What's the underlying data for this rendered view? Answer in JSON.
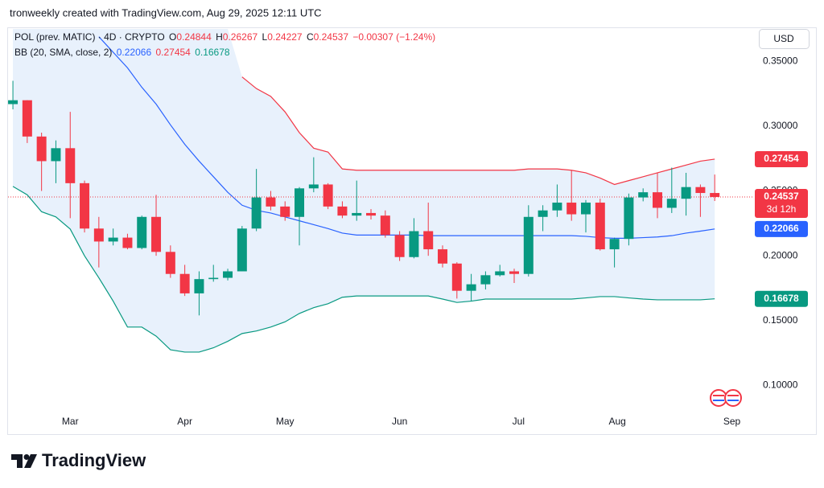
{
  "attribution": "tronweekly created with TradingView.com, Aug 29, 2025 12:11 UTC",
  "brand": "TradingView",
  "chart_data": {
    "type": "candlestick",
    "title": "POL (prev. MATIC) · 4D · CRYPTO",
    "ohlc_labels": [
      "O",
      "H",
      "L",
      "C"
    ],
    "change_label": "−0.00307 (−1.24%)",
    "indicator": "BB (20, SMA, close, 2)",
    "countdown": "3d 12h",
    "currency": "USD",
    "x": [
      0,
      1,
      2,
      3,
      4,
      5,
      6,
      7,
      8,
      9,
      10,
      11,
      12,
      13,
      14,
      15,
      16,
      17,
      18,
      19,
      20,
      21,
      22,
      23,
      24,
      25,
      26,
      27,
      28,
      29,
      30,
      31,
      32,
      33,
      34,
      35,
      36,
      37,
      38,
      39,
      40,
      41,
      42,
      43,
      44,
      45,
      46,
      47,
      48,
      49
    ],
    "open": [
      0.317,
      0.32,
      0.292,
      0.273,
      0.283,
      0.256,
      0.221,
      0.211,
      0.214,
      0.206,
      0.23,
      0.203,
      0.186,
      0.171,
      0.182,
      0.183,
      0.188,
      0.221,
      0.245,
      0.238,
      0.23,
      0.252,
      0.255,
      0.238,
      0.231,
      0.233,
      0.231,
      0.216,
      0.199,
      0.219,
      0.205,
      0.194,
      0.173,
      0.178,
      0.185,
      0.188,
      0.186,
      0.23,
      0.235,
      0.241,
      0.232,
      0.241,
      0.205,
      0.213,
      0.245,
      0.249,
      0.237,
      0.244,
      0.253,
      0.24844
    ],
    "high": [
      0.335,
      0.32,
      0.295,
      0.289,
      0.311,
      0.258,
      0.23,
      0.221,
      0.217,
      0.231,
      0.247,
      0.208,
      0.193,
      0.188,
      0.193,
      0.19,
      0.223,
      0.267,
      0.25,
      0.242,
      0.253,
      0.276,
      0.256,
      0.242,
      0.258,
      0.236,
      0.235,
      0.219,
      0.229,
      0.241,
      0.208,
      0.195,
      0.186,
      0.188,
      0.193,
      0.19,
      0.239,
      0.239,
      0.255,
      0.266,
      0.243,
      0.244,
      0.214,
      0.248,
      0.252,
      0.264,
      0.268,
      0.264,
      0.255,
      0.26267
    ],
    "low": [
      0.313,
      0.287,
      0.25,
      0.256,
      0.229,
      0.218,
      0.191,
      0.208,
      0.205,
      0.205,
      0.2,
      0.183,
      0.169,
      0.154,
      0.18,
      0.181,
      0.188,
      0.219,
      0.235,
      0.227,
      0.208,
      0.249,
      0.236,
      0.229,
      0.227,
      0.228,
      0.214,
      0.196,
      0.198,
      0.2,
      0.191,
      0.167,
      0.165,
      0.174,
      0.184,
      0.179,
      0.184,
      0.219,
      0.23,
      0.227,
      0.218,
      0.204,
      0.191,
      0.208,
      0.242,
      0.229,
      0.233,
      0.231,
      0.23,
      0.24227
    ],
    "close": [
      0.32,
      0.292,
      0.273,
      0.283,
      0.256,
      0.221,
      0.211,
      0.214,
      0.206,
      0.23,
      0.203,
      0.186,
      0.171,
      0.182,
      0.183,
      0.188,
      0.221,
      0.245,
      0.238,
      0.23,
      0.252,
      0.255,
      0.238,
      0.231,
      0.233,
      0.231,
      0.216,
      0.199,
      0.219,
      0.205,
      0.194,
      0.173,
      0.178,
      0.185,
      0.188,
      0.186,
      0.23,
      0.235,
      0.241,
      0.232,
      0.241,
      0.205,
      0.213,
      0.245,
      0.249,
      0.237,
      0.244,
      0.253,
      0.24844,
      0.24537
    ],
    "up_color": "#089981",
    "down_color": "#f23645",
    "band_fill": "#e8f1fc",
    "series": [
      {
        "color": "#2962ff",
        "values": [
          null,
          null,
          null,
          null,
          null,
          null,
          0.369,
          0.357,
          0.345,
          0.33,
          0.317,
          0.301,
          0.286,
          0.273,
          0.261,
          0.249,
          0.239,
          0.235,
          0.233,
          0.23,
          0.227,
          0.224,
          0.221,
          0.2175,
          0.216,
          0.216,
          0.216,
          0.216,
          0.216,
          0.2155,
          0.2155,
          0.2155,
          0.2155,
          0.2155,
          0.2155,
          0.2155,
          0.2155,
          0.2155,
          0.2155,
          0.2155,
          0.215,
          0.214,
          0.2135,
          0.2135,
          0.214,
          0.2145,
          0.2155,
          0.2175,
          0.219,
          0.22066
        ]
      },
      {
        "color": "#f23645",
        "values": [
          null,
          null,
          null,
          null,
          null,
          null,
          null,
          null,
          null,
          null,
          null,
          null,
          null,
          null,
          null,
          null,
          0.338,
          0.329,
          0.323,
          0.311,
          0.295,
          0.283,
          0.28,
          0.267,
          0.266,
          0.266,
          0.266,
          0.266,
          0.266,
          0.266,
          0.266,
          0.266,
          0.266,
          0.266,
          0.266,
          0.266,
          0.267,
          0.267,
          0.267,
          0.266,
          0.264,
          0.26,
          0.255,
          0.258,
          0.261,
          0.264,
          0.267,
          0.27,
          0.273,
          0.27454
        ]
      },
      {
        "color": "#089981",
        "values": [
          0.2535,
          0.247,
          0.234,
          0.23,
          0.2206,
          0.2,
          0.183,
          0.165,
          0.145,
          0.145,
          0.138,
          0.1275,
          0.1257,
          0.1257,
          0.129,
          0.134,
          0.14,
          0.142,
          0.145,
          0.149,
          0.1555,
          0.16,
          0.163,
          0.168,
          0.169,
          0.169,
          0.169,
          0.169,
          0.169,
          0.169,
          0.1666,
          0.164,
          0.165,
          0.1666,
          0.1666,
          0.1666,
          0.1666,
          0.1666,
          0.1666,
          0.1666,
          0.1675,
          0.1685,
          0.1685,
          0.1675,
          0.1666,
          0.166,
          0.166,
          0.166,
          0.166,
          0.16678
        ]
      }
    ],
    "xlim": [
      -0.34,
      51.63
    ],
    "xticks": [
      {
        "value": 4,
        "label": "Mar"
      },
      {
        "value": 12,
        "label": "Apr"
      },
      {
        "value": 19,
        "label": "May"
      },
      {
        "value": 27,
        "label": "Jun"
      },
      {
        "value": 35.3,
        "label": "Jul"
      },
      {
        "value": 42.2,
        "label": "Aug"
      },
      {
        "value": 50.2,
        "label": "Sep"
      }
    ],
    "ylim": [
      0.081,
      0.375
    ],
    "yticks": [
      {
        "value": 0.1,
        "label": "0.10000"
      },
      {
        "value": 0.15,
        "label": "0.15000"
      },
      {
        "value": 0.2,
        "label": "0.20000"
      },
      {
        "value": 0.25,
        "label": "0.25000"
      },
      {
        "value": 0.3,
        "label": "0.30000"
      },
      {
        "value": 0.35,
        "label": "0.35000"
      }
    ],
    "grid": false
  }
}
